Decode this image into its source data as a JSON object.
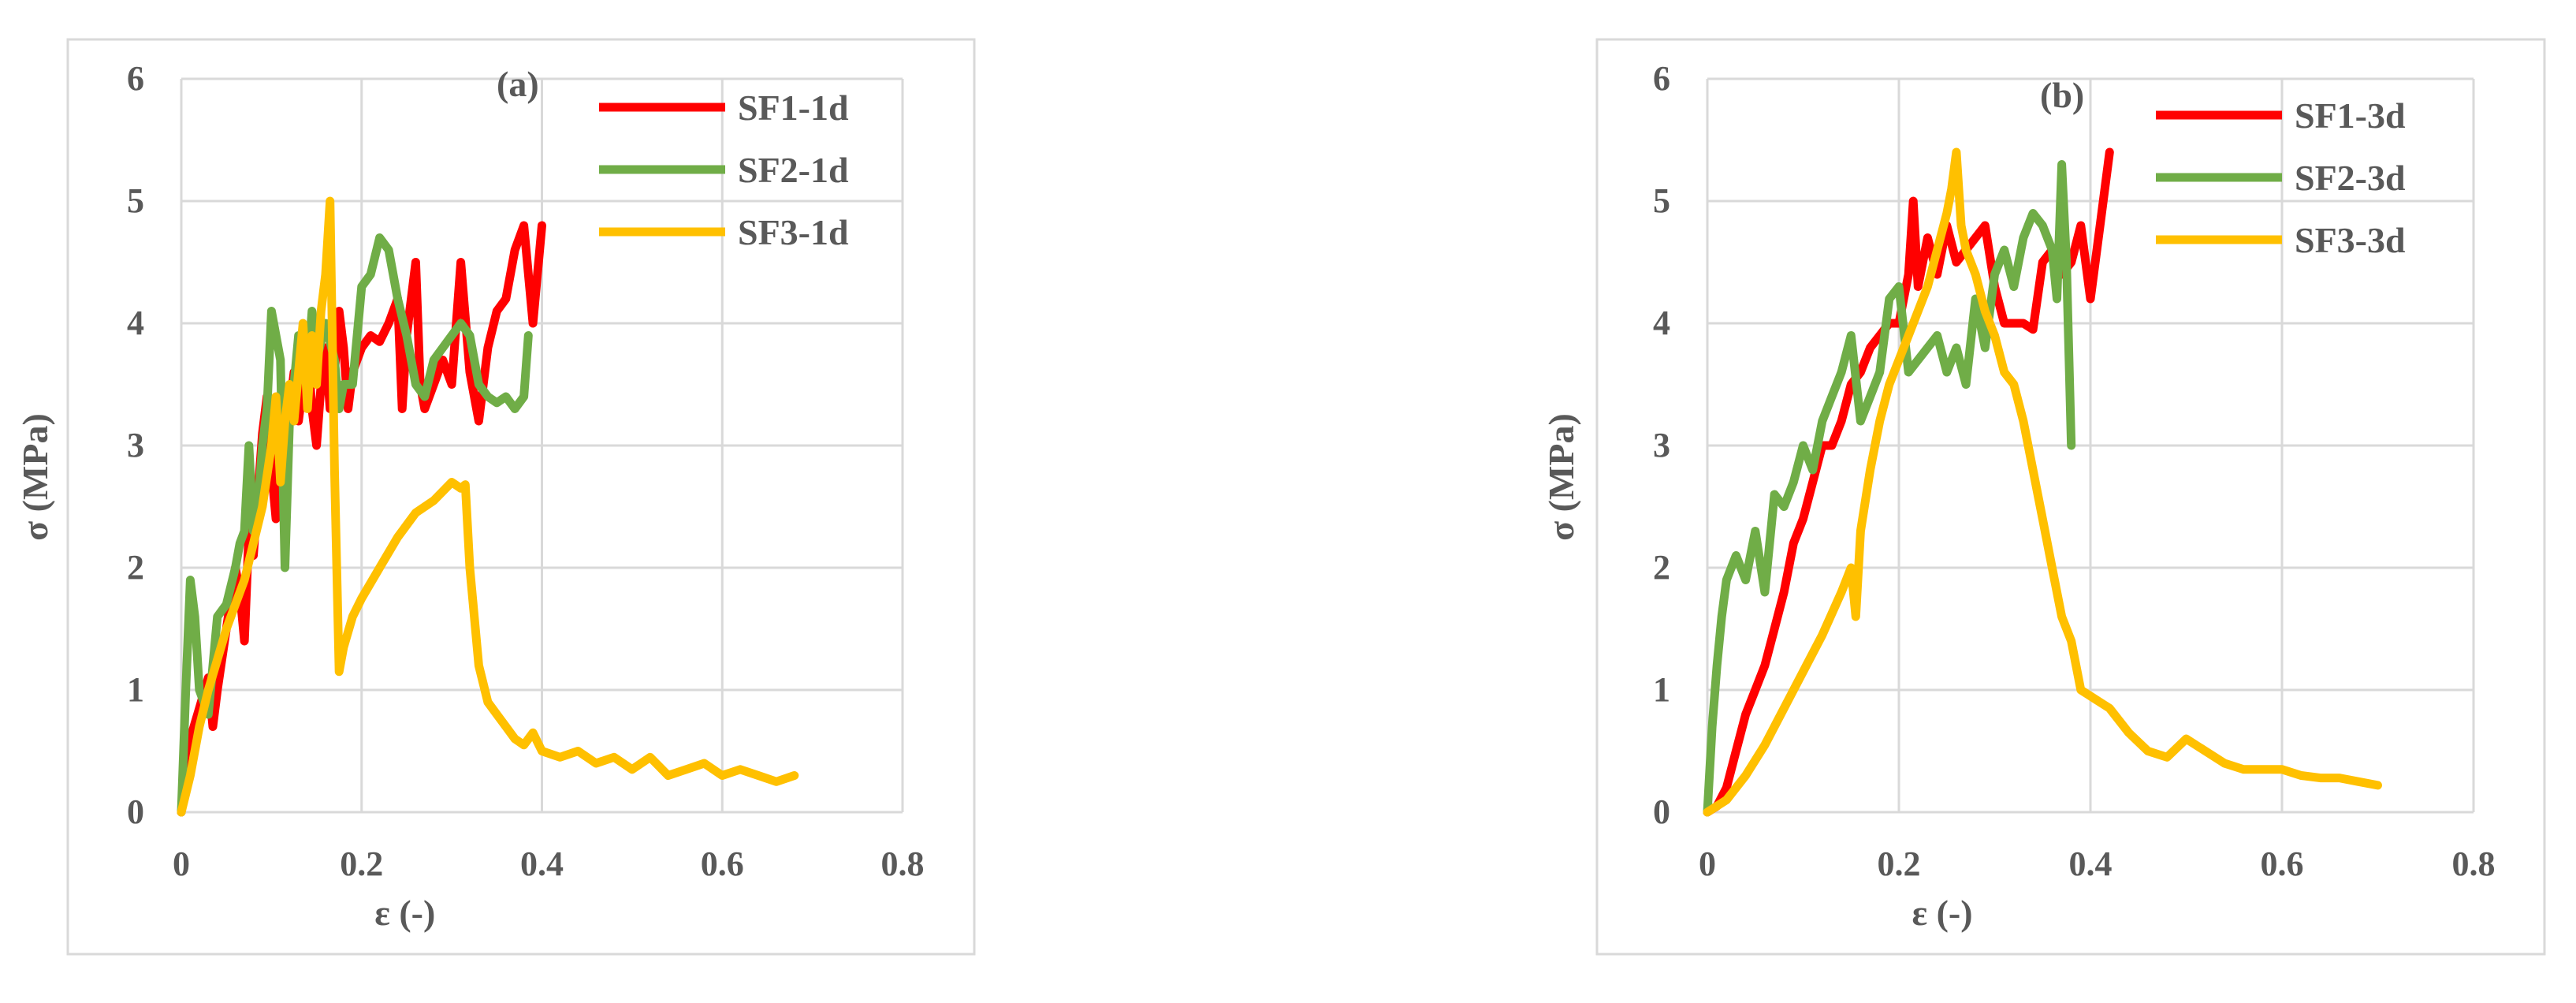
{
  "chart_data": [
    {
      "type": "line",
      "annotation": "(a)",
      "title": "",
      "xlabel": "ε (-)",
      "ylabel": "σ (MPa)",
      "xlim": [
        0,
        0.8
      ],
      "ylim": [
        0,
        6
      ],
      "xticks": [
        "0",
        "0.2",
        "0.4",
        "0.6",
        "0.8"
      ],
      "yticks": [
        "0",
        "1",
        "2",
        "3",
        "4",
        "5",
        "6"
      ],
      "grid": true,
      "legend_position": "top-right",
      "series": [
        {
          "name": "SF1-1d",
          "color": "#FF0000",
          "x": [
            0,
            0.005,
            0.01,
            0.02,
            0.03,
            0.035,
            0.04,
            0.05,
            0.06,
            0.065,
            0.07,
            0.075,
            0.08,
            0.085,
            0.09,
            0.095,
            0.1,
            0.105,
            0.11,
            0.115,
            0.12,
            0.125,
            0.13,
            0.14,
            0.145,
            0.15,
            0.155,
            0.16,
            0.165,
            0.17,
            0.175,
            0.18,
            0.185,
            0.19,
            0.2,
            0.21,
            0.22,
            0.23,
            0.24,
            0.245,
            0.25,
            0.26,
            0.265,
            0.27,
            0.28,
            0.29,
            0.3,
            0.31,
            0.32,
            0.33,
            0.34,
            0.35,
            0.36,
            0.37,
            0.38,
            0.39,
            0.4
          ],
          "y": [
            0,
            0.3,
            0.6,
            0.85,
            1.1,
            0.7,
            1.0,
            1.5,
            2.0,
            1.8,
            1.4,
            2.3,
            2.1,
            2.6,
            3.1,
            3.4,
            2.8,
            2.4,
            3.1,
            2.6,
            3.3,
            3.6,
            3.2,
            3.8,
            3.3,
            3.0,
            3.5,
            3.8,
            3.3,
            3.6,
            4.1,
            3.8,
            3.3,
            3.6,
            3.8,
            3.9,
            3.85,
            4.0,
            4.2,
            3.3,
            3.9,
            4.5,
            3.5,
            3.3,
            3.5,
            3.7,
            3.5,
            4.5,
            3.6,
            3.2,
            3.8,
            4.1,
            4.2,
            4.6,
            4.8,
            4.0,
            4.8
          ]
        },
        {
          "name": "SF2-1d",
          "color": "#70AD47",
          "x": [
            0,
            0.005,
            0.01,
            0.015,
            0.02,
            0.03,
            0.04,
            0.05,
            0.06,
            0.065,
            0.07,
            0.075,
            0.08,
            0.085,
            0.09,
            0.095,
            0.1,
            0.105,
            0.11,
            0.115,
            0.12,
            0.125,
            0.13,
            0.14,
            0.145,
            0.15,
            0.16,
            0.17,
            0.175,
            0.18,
            0.19,
            0.2,
            0.21,
            0.22,
            0.23,
            0.24,
            0.25,
            0.26,
            0.27,
            0.28,
            0.29,
            0.3,
            0.31,
            0.32,
            0.33,
            0.34,
            0.35,
            0.36,
            0.37,
            0.38,
            0.385
          ],
          "y": [
            0,
            1.0,
            1.9,
            1.6,
            1.0,
            0.8,
            1.6,
            1.7,
            2.0,
            2.2,
            2.3,
            3.0,
            2.3,
            2.5,
            3.0,
            3.3,
            4.1,
            3.9,
            3.7,
            2.0,
            3.2,
            3.5,
            3.9,
            3.6,
            4.1,
            3.7,
            4.0,
            3.7,
            3.3,
            3.5,
            3.5,
            4.3,
            4.4,
            4.7,
            4.6,
            4.2,
            3.9,
            3.5,
            3.4,
            3.7,
            3.8,
            3.9,
            4.0,
            3.9,
            3.5,
            3.4,
            3.35,
            3.4,
            3.3,
            3.4,
            3.9
          ]
        },
        {
          "name": "SF3-1d",
          "color": "#FFC000",
          "x": [
            0,
            0.01,
            0.02,
            0.03,
            0.04,
            0.05,
            0.06,
            0.07,
            0.08,
            0.09,
            0.1,
            0.105,
            0.11,
            0.115,
            0.12,
            0.125,
            0.13,
            0.135,
            0.14,
            0.145,
            0.15,
            0.155,
            0.16,
            0.165,
            0.17,
            0.175,
            0.18,
            0.19,
            0.2,
            0.22,
            0.24,
            0.26,
            0.28,
            0.3,
            0.31,
            0.315,
            0.32,
            0.325,
            0.33,
            0.34,
            0.35,
            0.36,
            0.37,
            0.38,
            0.39,
            0.4,
            0.42,
            0.44,
            0.46,
            0.48,
            0.5,
            0.52,
            0.54,
            0.56,
            0.58,
            0.6,
            0.62,
            0.64,
            0.66,
            0.68
          ],
          "y": [
            0,
            0.3,
            0.7,
            1.0,
            1.25,
            1.5,
            1.7,
            1.9,
            2.2,
            2.5,
            3.0,
            3.4,
            2.7,
            3.2,
            3.5,
            3.2,
            3.6,
            4.0,
            3.3,
            3.9,
            3.5,
            4.1,
            4.4,
            5.0,
            2.8,
            1.15,
            1.35,
            1.6,
            1.75,
            2.0,
            2.25,
            2.45,
            2.55,
            2.7,
            2.65,
            2.68,
            2.0,
            1.6,
            1.2,
            0.9,
            0.8,
            0.7,
            0.6,
            0.55,
            0.65,
            0.5,
            0.45,
            0.5,
            0.4,
            0.45,
            0.35,
            0.45,
            0.3,
            0.35,
            0.4,
            0.3,
            0.35,
            0.3,
            0.25,
            0.3
          ]
        }
      ]
    },
    {
      "type": "line",
      "annotation": "(b)",
      "title": "",
      "xlabel": "ε (-)",
      "ylabel": "σ (MPa)",
      "xlim": [
        0,
        0.8
      ],
      "ylim": [
        0,
        6
      ],
      "xticks": [
        "0",
        "0.2",
        "0.4",
        "0.6",
        "0.8"
      ],
      "yticks": [
        "0",
        "1",
        "2",
        "3",
        "4",
        "5",
        "6"
      ],
      "grid": true,
      "legend_position": "top-right",
      "series": [
        {
          "name": "SF1-3d",
          "color": "#FF0000",
          "x": [
            0,
            0.01,
            0.02,
            0.03,
            0.04,
            0.05,
            0.06,
            0.07,
            0.08,
            0.09,
            0.1,
            0.11,
            0.12,
            0.13,
            0.14,
            0.15,
            0.16,
            0.17,
            0.18,
            0.19,
            0.2,
            0.21,
            0.215,
            0.22,
            0.23,
            0.24,
            0.25,
            0.26,
            0.27,
            0.28,
            0.29,
            0.3,
            0.31,
            0.32,
            0.33,
            0.34,
            0.35,
            0.36,
            0.37,
            0.38,
            0.39,
            0.4,
            0.41,
            0.42
          ],
          "y": [
            0,
            0.05,
            0.2,
            0.5,
            0.8,
            1.0,
            1.2,
            1.5,
            1.8,
            2.2,
            2.4,
            2.7,
            3.0,
            3.0,
            3.2,
            3.5,
            3.6,
            3.8,
            3.9,
            4.0,
            4.0,
            4.4,
            5.0,
            4.3,
            4.7,
            4.4,
            4.8,
            4.5,
            4.6,
            4.7,
            4.8,
            4.3,
            4.0,
            4.0,
            4.0,
            3.95,
            4.5,
            4.6,
            4.4,
            4.5,
            4.8,
            4.2,
            4.8,
            5.4
          ]
        },
        {
          "name": "SF2-3d",
          "color": "#70AD47",
          "x": [
            0,
            0.005,
            0.01,
            0.015,
            0.02,
            0.03,
            0.04,
            0.05,
            0.06,
            0.07,
            0.08,
            0.09,
            0.1,
            0.11,
            0.12,
            0.13,
            0.14,
            0.15,
            0.16,
            0.17,
            0.18,
            0.19,
            0.2,
            0.21,
            0.22,
            0.23,
            0.24,
            0.25,
            0.26,
            0.27,
            0.28,
            0.29,
            0.3,
            0.31,
            0.32,
            0.33,
            0.34,
            0.35,
            0.36,
            0.365,
            0.37,
            0.375,
            0.38
          ],
          "y": [
            0,
            0.7,
            1.2,
            1.6,
            1.9,
            2.1,
            1.9,
            2.3,
            1.8,
            2.6,
            2.5,
            2.7,
            3.0,
            2.8,
            3.2,
            3.4,
            3.6,
            3.9,
            3.2,
            3.4,
            3.6,
            4.2,
            4.3,
            3.6,
            3.7,
            3.8,
            3.9,
            3.6,
            3.8,
            3.5,
            4.2,
            3.8,
            4.4,
            4.6,
            4.3,
            4.7,
            4.9,
            4.8,
            4.6,
            4.2,
            5.3,
            4.5,
            3.0
          ]
        },
        {
          "name": "SF3-3d",
          "color": "#FFC000",
          "x": [
            0,
            0.02,
            0.04,
            0.06,
            0.08,
            0.1,
            0.12,
            0.14,
            0.15,
            0.155,
            0.16,
            0.17,
            0.18,
            0.19,
            0.2,
            0.21,
            0.22,
            0.23,
            0.24,
            0.25,
            0.255,
            0.26,
            0.265,
            0.27,
            0.28,
            0.29,
            0.3,
            0.31,
            0.32,
            0.33,
            0.34,
            0.35,
            0.36,
            0.37,
            0.38,
            0.39,
            0.4,
            0.42,
            0.44,
            0.46,
            0.48,
            0.5,
            0.52,
            0.54,
            0.56,
            0.58,
            0.6,
            0.62,
            0.64,
            0.66,
            0.68,
            0.7
          ],
          "y": [
            0,
            0.1,
            0.3,
            0.55,
            0.85,
            1.15,
            1.45,
            1.8,
            2.0,
            1.6,
            2.3,
            2.8,
            3.2,
            3.5,
            3.7,
            3.9,
            4.1,
            4.3,
            4.6,
            4.9,
            5.1,
            5.4,
            4.8,
            4.6,
            4.4,
            4.1,
            3.9,
            3.6,
            3.5,
            3.2,
            2.8,
            2.4,
            2.0,
            1.6,
            1.4,
            1.0,
            0.95,
            0.85,
            0.65,
            0.5,
            0.45,
            0.6,
            0.5,
            0.4,
            0.35,
            0.35,
            0.35,
            0.3,
            0.28,
            0.28,
            0.25,
            0.22
          ]
        }
      ]
    }
  ]
}
